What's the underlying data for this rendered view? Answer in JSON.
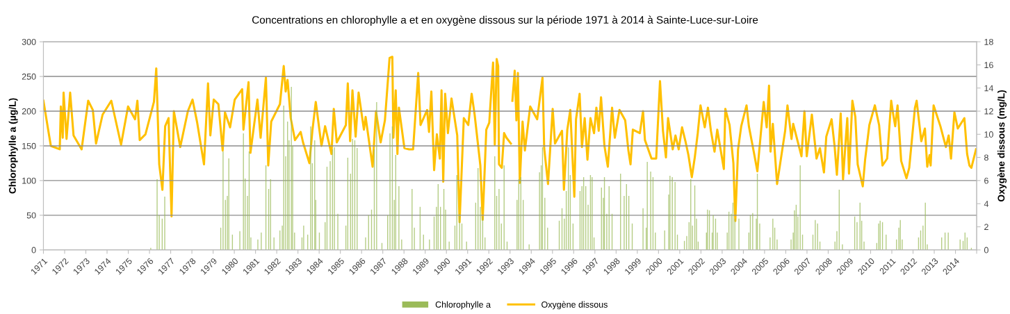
{
  "chart_data": {
    "type": "bar",
    "title": "Concentrations en chlorophylle a et en oxygène dissous sur la période 1971 à 2014 à Sainte-Luce-sur-Loire",
    "ylabel": "Chlorophylle a (µg/L)",
    "y2label": "Oxygène dissous (mg/L)",
    "xlim": [
      1971,
      2015
    ],
    "xticks": [
      1971,
      1972,
      1973,
      1974,
      1975,
      1976,
      1977,
      1978,
      1979,
      1980,
      1981,
      1982,
      1983,
      1984,
      1985,
      1986,
      1987,
      1988,
      1989,
      1990,
      1991,
      1992,
      1993,
      1994,
      1995,
      1996,
      1997,
      1998,
      1999,
      2000,
      2001,
      2002,
      2003,
      2004,
      2005,
      2006,
      2007,
      2008,
      2009,
      2010,
      2011,
      2012,
      2013,
      2014,
      {
        "value": 2015,
        "label": null
      }
    ],
    "ylim": [
      0,
      300
    ],
    "yticks": [
      0,
      50,
      100,
      150,
      200,
      250,
      300
    ],
    "y2lim": [
      0,
      18
    ],
    "y2ticks": [
      0,
      2,
      4,
      6,
      8,
      10,
      12,
      14,
      16,
      18
    ],
    "grid": "y",
    "legend": "bottom",
    "series": [
      {
        "name": "Chlorophylle a",
        "color": "#9bbb59",
        "x": [
          1976.06,
          1976.36,
          1976.46,
          1976.6,
          1976.72,
          1979.36,
          1979.47,
          1979.58,
          1979.67,
          1979.74,
          1979.91,
          1980.26,
          1980.43,
          1980.51,
          1980.62,
          1980.7,
          1980.78,
          1981.11,
          1981.27,
          1981.49,
          1981.62,
          1981.71,
          1981.87,
          1982.15,
          1982.26,
          1982.33,
          1982.42,
          1982.51,
          1982.58,
          1982.69,
          1982.75,
          1982.84,
          1983.19,
          1983.27,
          1983.46,
          1983.6,
          1983.68,
          1983.79,
          1983.84,
          1984.01,
          1984.28,
          1984.37,
          1984.52,
          1984.63,
          1984.72,
          1984.88,
          1985.26,
          1985.35,
          1985.48,
          1985.57,
          1985.68,
          1985.79,
          1986.19,
          1986.33,
          1986.47,
          1986.6,
          1986.71,
          1986.96,
          1987.23,
          1987.34,
          1987.45,
          1987.54,
          1987.61,
          1987.76,
          1987.89,
          1988.38,
          1988.49,
          1988.76,
          1988.92,
          1989.2,
          1989.42,
          1989.53,
          1989.61,
          1989.72,
          1989.88,
          1989.96,
          1990.13,
          1990.4,
          1990.49,
          1990.62,
          1990.73,
          1990.95,
          1991.38,
          1991.49,
          1991.6,
          1991.71,
          1991.82,
          1992.28,
          1992.37,
          1992.48,
          1992.59,
          1992.72,
          1992.86,
          1993.33,
          1993.41,
          1993.51,
          1993.62,
          1993.9,
          1994.39,
          1994.47,
          1994.53,
          1994.64,
          1994.77,
          1995.32,
          1995.45,
          1995.56,
          1995.65,
          1995.75,
          1995.84,
          1995.97,
          1996.3,
          1996.39,
          1996.47,
          1996.57,
          1996.68,
          1996.79,
          1996.87,
          1996.96,
          1997.31,
          1997.4,
          1997.45,
          1997.56,
          1997.67,
          1997.81,
          1998.21,
          1998.38,
          1998.49,
          1998.6,
          1998.76,
          1999.27,
          1999.42,
          1999.47,
          1999.63,
          1999.74,
          1999.85,
          2000.29,
          2000.48,
          2000.54,
          2000.65,
          2000.78,
          2000.89,
          2001.22,
          2001.33,
          2001.44,
          2001.52,
          2001.6,
          2001.71,
          2001.79,
          2001.87,
          2002.26,
          2002.31,
          2002.4,
          2002.53,
          2002.58,
          2002.69,
          2002.77,
          2003.24,
          2003.32,
          2003.43,
          2003.51,
          2003.6,
          2003.79,
          2004.26,
          2004.33,
          2004.44,
          2004.61,
          2004.66,
          2004.77,
          2005.26,
          2005.39,
          2005.48,
          2005.59,
          2006.25,
          2006.35,
          2006.41,
          2006.49,
          2006.57,
          2006.68,
          2006.79,
          2007.28,
          2007.39,
          2007.5,
          2007.61,
          2008.32,
          2008.41,
          2008.52,
          2008.67,
          2009.25,
          2009.36,
          2009.5,
          2009.58,
          2009.69,
          2010.29,
          2010.38,
          2010.45,
          2010.56,
          2010.73,
          2011.22,
          2011.33,
          2011.4,
          2011.49,
          2012.26,
          2012.36,
          2012.47,
          2012.58,
          2012.67,
          2013.35,
          2013.51,
          2013.66,
          2014.22,
          2014.36,
          2014.45,
          2014.55,
          2014.75
        ],
        "values": [
          3,
          102,
          50,
          45,
          77,
          32,
          142,
          72,
          78,
          132,
          22,
          27,
          168,
          103,
          78,
          142,
          18,
          15,
          25,
          122,
          88,
          102,
          18,
          28,
          35,
          208,
          135,
          185,
          158,
          235,
          150,
          25,
          18,
          35,
          22,
          178,
          125,
          158,
          72,
          25,
          40,
          120,
          128,
          145,
          148,
          52,
          35,
          133,
          110,
          160,
          158,
          147,
          18,
          50,
          58,
          145,
          213,
          10,
          50,
          168,
          178,
          72,
          137,
          92,
          15,
          88,
          32,
          62,
          22,
          15,
          48,
          62,
          95,
          62,
          88,
          58,
          12,
          35,
          108,
          52,
          38,
          12,
          68,
          118,
          62,
          48,
          18,
          135,
          78,
          88,
          38,
          122,
          12,
          72,
          102,
          105,
          72,
          8,
          112,
          122,
          148,
          75,
          32,
          42,
          60,
          45,
          85,
          148,
          108,
          38,
          85,
          92,
          105,
          92,
          65,
          108,
          105,
          18,
          90,
          75,
          105,
          52,
          92,
          52,
          110,
          78,
          95,
          78,
          38,
          60,
          32,
          127,
          113,
          105,
          25,
          28,
          80,
          107,
          105,
          98,
          22,
          13,
          20,
          40,
          102,
          35,
          93,
          45,
          12,
          25,
          58,
          57,
          25,
          50,
          45,
          25,
          25,
          55,
          52,
          68,
          45,
          45,
          25,
          50,
          53,
          45,
          110,
          38,
          18,
          45,
          32,
          15,
          15,
          25,
          57,
          65,
          48,
          122,
          22,
          22,
          43,
          38,
          12,
          12,
          27,
          87,
          8,
          48,
          40,
          68,
          42,
          12,
          10,
          38,
          42,
          40,
          22,
          15,
          32,
          43,
          15,
          18,
          28,
          35,
          68,
          8,
          18,
          25,
          25,
          15,
          13,
          25,
          18,
          3
        ]
      },
      {
        "name": "Oxygène dissous",
        "type": "line",
        "axis": "y2",
        "color": "#ffc000",
        "x": [
          1971.0,
          1971.25,
          1971.35,
          1971.77,
          1971.82,
          1971.91,
          1971.95,
          1972.09,
          1972.26,
          1972.42,
          1972.8,
          1973.11,
          1973.33,
          1973.48,
          1973.79,
          1974.2,
          1974.66,
          1974.99,
          1975.32,
          1975.43,
          1975.54,
          1975.81,
          1976.21,
          1976.32,
          1976.46,
          1976.61,
          1976.74,
          1976.9,
          1977.04,
          1977.15,
          1977.45,
          1977.81,
          1978.03,
          1978.25,
          1978.57,
          1978.76,
          1978.87,
          1979.03,
          1979.25,
          1979.45,
          1979.56,
          1979.8,
          1980.02,
          1980.37,
          1980.43,
          1980.67,
          1980.76,
          1981.09,
          1981.24,
          1981.49,
          1981.6,
          1981.74,
          1982.15,
          1982.33,
          1982.42,
          1982.51,
          1982.66,
          1982.86,
          1983.13,
          1983.24,
          1983.54,
          1983.68,
          1983.84,
          1984.11,
          1984.28,
          1984.58,
          1984.69,
          1984.83,
          1985.26,
          1985.35,
          1985.46,
          1985.57,
          1985.72,
          1985.86,
          1986.11,
          1986.19,
          1986.52,
          1986.68,
          1986.9,
          1987.1,
          1987.32,
          1987.45,
          1987.5,
          1987.61,
          1987.69,
          1987.76,
          1988.02,
          1988.24,
          1988.43,
          1988.67,
          1988.78,
          1989.09,
          1989.18,
          1989.29,
          1989.42,
          1989.55,
          1989.69,
          1989.77,
          1989.85,
          1989.94,
          1990.07,
          1990.24,
          1990.51,
          1990.62,
          1990.82,
          1991.03,
          1991.19,
          1991.33,
          1991.6,
          1991.71,
          1991.88,
          1992.02,
          1992.2,
          1992.28,
          1992.37,
          1992.44,
          1992.48,
          1992.61,
          1992.72,
          1992.83,
          1993.04,
          1993.08,
          1993.11,
          1993.22,
          1993.3,
          1993.37,
          1993.46,
          1993.59,
          1993.7,
          1993.95,
          1994.28,
          1994.53,
          1994.61,
          1994.79,
          1995.01,
          1995.12,
          1995.45,
          1995.54,
          1995.7,
          1995.84,
          1996.03,
          1996.11,
          1996.28,
          1996.39,
          1996.52,
          1996.65,
          1996.79,
          1996.96,
          1997.07,
          1997.18,
          1997.29,
          1997.45,
          1997.61,
          1997.81,
          1997.94,
          1998.16,
          1998.43,
          1998.58,
          1998.68,
          1998.79,
          1999.12,
          1999.27,
          1999.36,
          1999.67,
          1999.89,
          2000.07,
          2000.21,
          2000.35,
          2000.45,
          2000.67,
          2000.8,
          2000.95,
          2001.11,
          2001.27,
          2001.41,
          2001.57,
          2001.71,
          2001.85,
          2001.98,
          2002.18,
          2002.33,
          2002.47,
          2002.64,
          2002.77,
          2003.08,
          2003.15,
          2003.35,
          2003.53,
          2003.62,
          2003.75,
          2003.9,
          2004.15,
          2004.26,
          2004.5,
          2004.66,
          2004.96,
          2005.1,
          2005.21,
          2005.28,
          2005.39,
          2005.59,
          2005.97,
          2006.08,
          2006.27,
          2006.35,
          2006.74,
          2006.88,
          2006.99,
          2007.23,
          2007.45,
          2007.61,
          2007.8,
          2007.91,
          2008.16,
          2008.3,
          2008.41,
          2008.59,
          2008.7,
          2008.81,
          2008.9,
          2008.98,
          2009.14,
          2009.28,
          2009.39,
          2009.63,
          2009.74,
          2009.94,
          2010.2,
          2010.4,
          2010.56,
          2010.78,
          2010.97,
          2011.05,
          2011.16,
          2011.27,
          2011.44,
          2011.69,
          2011.82,
          2012.09,
          2012.17,
          2012.39,
          2012.56,
          2012.67,
          2012.78,
          2012.83,
          2012.97,
          2013.29,
          2013.55,
          2013.68,
          2013.79,
          2013.95,
          2014.11,
          2014.42,
          2014.55,
          2014.66,
          2014.75,
          2014.97
        ],
        "values": [
          12.9,
          10.1,
          9.0,
          8.7,
          12.4,
          9.7,
          13.6,
          9.6,
          13.6,
          9.9,
          8.7,
          12.9,
          12.1,
          9.2,
          11.7,
          12.9,
          9.1,
          12.4,
          11.3,
          12.9,
          9.5,
          10.0,
          12.8,
          15.7,
          7.4,
          5.2,
          10.7,
          11.4,
          2.9,
          12.0,
          8.9,
          12.0,
          13.0,
          11.0,
          7.4,
          14.4,
          9.9,
          13.0,
          12.6,
          8.6,
          11.9,
          10.6,
          13.0,
          13.9,
          10.4,
          14.5,
          8.4,
          13.0,
          9.7,
          14.9,
          7.3,
          11.1,
          12.6,
          15.9,
          13.7,
          14.7,
          11.4,
          9.5,
          10.2,
          9.3,
          7.5,
          10.3,
          12.8,
          9.0,
          10.7,
          8.3,
          12.2,
          9.3,
          10.8,
          14.4,
          9.4,
          13.8,
          9.8,
          13.6,
          10.4,
          11.5,
          7.2,
          12.0,
          9.3,
          11.2,
          16.6,
          16.7,
          9.7,
          13.8,
          8.3,
          12.3,
          8.8,
          8.7,
          8.7,
          15.3,
          10.8,
          12.1,
          10.2,
          13.7,
          6.9,
          10.0,
          7.9,
          13.8,
          5.9,
          13.5,
          10.1,
          13.1,
          9.9,
          2.4,
          11.4,
          10.8,
          13.5,
          11.7,
          7.3,
          2.6,
          10.4,
          11.0,
          16.2,
          9.1,
          16.5,
          15.9,
          7.4,
          7.1,
          10.1,
          9.7,
          9.2,
          null,
          12.9,
          15.5,
          11.2,
          15.3,
          5.8,
          11.1,
          8.6,
          12.4,
          11.3,
          14.9,
          8.8,
          5.7,
          12.2,
          9.2,
          10.3,
          5.2,
          10.4,
          12.1,
          4.6,
          11.3,
          13.5,
          8.9,
          11.4,
          7.8,
          11.4,
          10.1,
          12.3,
          10.3,
          13.2,
          9.0,
          7.2,
          12.3,
          9.7,
          12.1,
          11.2,
          8.6,
          7.4,
          10.4,
          10.1,
          12.0,
          9.5,
          7.9,
          7.9,
          14.6,
          10.3,
          8.0,
          11.4,
          8.7,
          9.9,
          8.7,
          10.6,
          9.4,
          8.2,
          6.3,
          8.0,
          10.1,
          12.5,
          10.6,
          12.3,
          10.3,
          8.5,
          10.4,
          7.0,
          12.2,
          10.8,
          7.5,
          2.5,
          8.7,
          10.7,
          12.5,
          10.7,
          8.4,
          6.8,
          12.8,
          10.6,
          14.2,
          8.5,
          10.9,
          5.7,
          10.3,
          12.5,
          9.6,
          10.9,
          8.1,
          12.0,
          8.1,
          11.7,
          7.9,
          8.8,
          6.7,
          9.8,
          11.3,
          9.0,
          6.5,
          11.8,
          6.1,
          9.1,
          11.4,
          6.6,
          12.9,
          11.5,
          7.4,
          5.5,
          7.8,
          10.8,
          12.5,
          10.8,
          7.3,
          7.9,
          12.9,
          11.9,
          10.7,
          12.5,
          7.7,
          6.2,
          7.1,
          12.3,
          12.9,
          9.4,
          10.5,
          7.2,
          8.2,
          7.3,
          12.5,
          10.7,
          8.9,
          9.9,
          7.9,
          11.9,
          10.5,
          11.4,
          8.3,
          7.3,
          7.1,
          8.7
        ]
      }
    ]
  }
}
